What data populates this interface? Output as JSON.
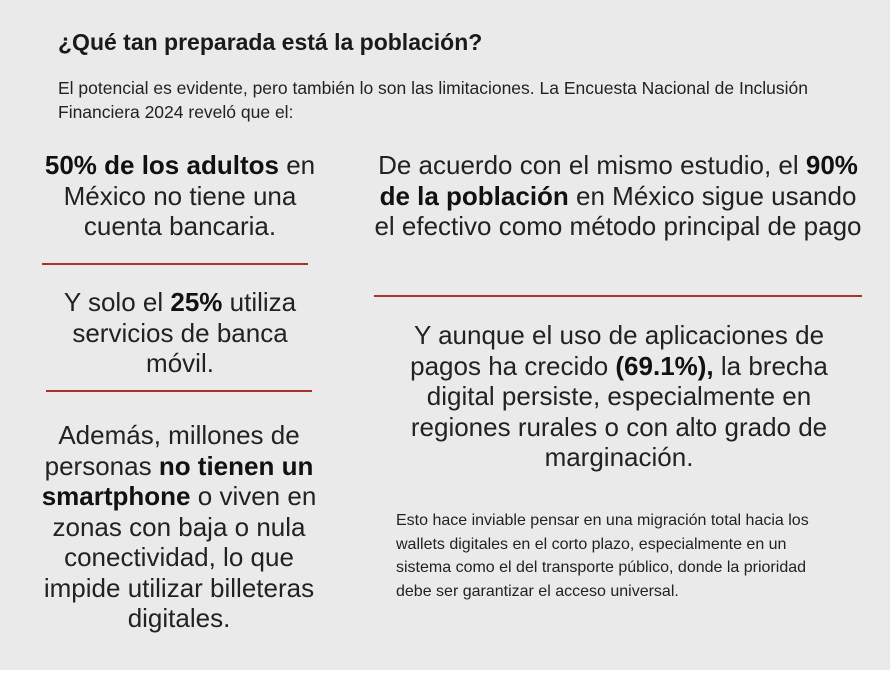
{
  "heading": "¿Qué tan preparada está la población?",
  "intro": "El potencial es evidente, pero también lo son las limitaciones. La Encuesta Nacional de Inclusión Financiera 2024 reveló que el:",
  "left_column": {
    "stat1": {
      "emphasis": "50% de los adultos",
      "rest": "en México no tiene una cuenta bancaria."
    },
    "stat2": {
      "prefix": "Y solo el ",
      "emphasis": "25%",
      "rest": " utiliza servicios de banca móvil."
    },
    "stat3": {
      "prefix": "Además, millones de personas ",
      "emphasis": "no tienen un smartphone",
      "rest": " o viven en zonas con baja o nula conectividad, lo que impide utilizar billeteras digitales."
    }
  },
  "right_column": {
    "stat1": {
      "prefix": "De acuerdo con el mismo estudio, el ",
      "emphasis": "90% de la población",
      "rest": " en México sigue usando el efectivo como método principal de pago"
    },
    "stat2": {
      "prefix": "Y aunque el uso de aplicaciones de pagos ha crecido ",
      "emphasis": "(69.1%),",
      "rest": " la brecha digital persiste, especialmente en regiones rurales o con alto grado de marginación."
    },
    "footnote": "Esto hace inviable pensar en una migración total hacia los wallets digitales en el corto plazo, especialmente en un sistema como el del transporte público, donde la prioridad debe ser garantizar el acceso universal."
  },
  "colors": {
    "panel_background": "#eaeaea",
    "divider_red": "#a8322e",
    "text_dark": "#1c1c1c"
  }
}
